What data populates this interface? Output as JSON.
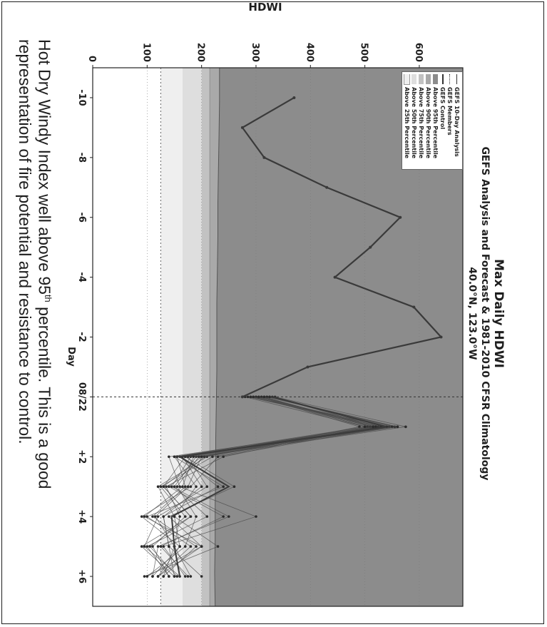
{
  "chart_data": {
    "type": "line",
    "title": "Max Daily HDWI",
    "subtitle": "GEFS Analysis and Forecast & 1981-2010 CFSR Climatology",
    "location": "40.0°N, 123.0°W",
    "xlabel": "Day",
    "ylabel": "HDWI",
    "x_ticks": [
      "-10",
      "-8",
      "-6",
      "-4",
      "-2",
      "08/22",
      "+2",
      "+4",
      "+6"
    ],
    "y_ticks": [
      "0",
      "100",
      "200",
      "300",
      "400",
      "500",
      "600"
    ],
    "xlim": [
      -11,
      7
    ],
    "ylim": [
      0,
      680
    ],
    "today_marker": 0,
    "legend": [
      "GEFS 10-Day Analysis",
      "GEFS Members",
      "GEFS Control",
      "Above 95th Percentile",
      "Above 90th Percentile",
      "Above 75th Percentile",
      "Above 50th Percentile",
      "Above 25th Percentile"
    ],
    "percentile_bands": {
      "above_25th": 125,
      "above_50th": 165,
      "above_75th": 200,
      "above_90th": 215,
      "p95": [
        233,
        233,
        232,
        231,
        230,
        230,
        229,
        228,
        228,
        228,
        227,
        226,
        226,
        225,
        225,
        224,
        225
      ]
    },
    "analysis_series": {
      "name": "GEFS 10-Day Analysis",
      "x": [
        -10,
        -9,
        -8,
        -7,
        -6,
        -5,
        -4,
        -3,
        -2,
        -1,
        0
      ],
      "y": [
        370,
        275,
        315,
        430,
        565,
        510,
        445,
        590,
        640,
        395,
        275
      ]
    },
    "control_series": {
      "name": "GEFS Control",
      "x": [
        0,
        1,
        2,
        3,
        4,
        5,
        6
      ],
      "y": [
        330,
        540,
        160,
        250,
        145,
        150,
        160
      ]
    },
    "members": [
      [
        300,
        530,
        150,
        240,
        100,
        180,
        120
      ],
      [
        320,
        560,
        200,
        130,
        180,
        90,
        150
      ],
      [
        280,
        500,
        170,
        260,
        140,
        200,
        100
      ],
      [
        310,
        520,
        140,
        160,
        300,
        130,
        170
      ],
      [
        290,
        545,
        230,
        180,
        90,
        160,
        120
      ],
      [
        335,
        575,
        190,
        150,
        210,
        100,
        140
      ],
      [
        305,
        490,
        210,
        120,
        150,
        230,
        95
      ],
      [
        315,
        515,
        165,
        200,
        130,
        140,
        200
      ],
      [
        285,
        535,
        180,
        145,
        250,
        120,
        110
      ],
      [
        325,
        555,
        155,
        170,
        110,
        190,
        130
      ],
      [
        295,
        505,
        240,
        135,
        160,
        150,
        180
      ],
      [
        330,
        525,
        175,
        210,
        120,
        95,
        160
      ],
      [
        300,
        540,
        195,
        155,
        190,
        170,
        100
      ],
      [
        310,
        510,
        160,
        230,
        130,
        140,
        150
      ],
      [
        290,
        530,
        220,
        125,
        170,
        110,
        140
      ],
      [
        320,
        550,
        185,
        165,
        95,
        200,
        120
      ],
      [
        305,
        520,
        205,
        140,
        240,
        125,
        175
      ],
      [
        315,
        500,
        150,
        190,
        150,
        160,
        110
      ],
      [
        325,
        560,
        170,
        130,
        180,
        105,
        155
      ],
      [
        295,
        515,
        200,
        175,
        115,
        150,
        130
      ]
    ],
    "colors": {
      "p95_fill": "#8c8c8c",
      "p90_fill": "#a9a9a9",
      "p75_fill": "#c2c2c2",
      "p50_fill": "#dedede",
      "p25_fill": "#efefef",
      "series_line": "#3a3a3a",
      "grid_line": "#7a7a7a"
    }
  },
  "caption": {
    "line1_before": "Hot Dry Windy Index well above 95",
    "line1_sup": "th",
    "line1_after": " percentile. This is a good",
    "line2": "representation of fire potential and resistance to control."
  }
}
